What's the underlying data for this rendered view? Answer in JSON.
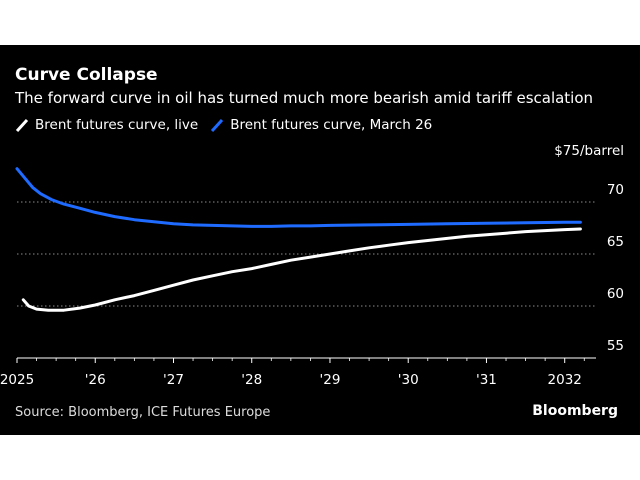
{
  "header": {
    "title": "Curve Collapse",
    "subtitle": "The forward curve in oil has turned much more bearish amid tariff escalation"
  },
  "legend": [
    {
      "label": "Brent futures curve, live",
      "color": "#ffffff"
    },
    {
      "label": "Brent futures curve, March 26",
      "color": "#1f6bff"
    }
  ],
  "footer": {
    "source": "Source: Bloomberg, ICE Futures Europe",
    "brand": "Bloomberg"
  },
  "chart_data": {
    "type": "line",
    "title": "Curve Collapse",
    "xlabel": "",
    "ylabel": "$75/barrel",
    "xlim": [
      2025.0,
      2032.4
    ],
    "ylim": [
      55,
      75
    ],
    "y_ticks": [
      {
        "value": 75,
        "label": "$75/barrel"
      },
      {
        "value": 70,
        "label": "70"
      },
      {
        "value": 65,
        "label": "65"
      },
      {
        "value": 60,
        "label": "60"
      },
      {
        "value": 55,
        "label": "55"
      }
    ],
    "x_ticks": [
      {
        "value": 2025.0,
        "label": "2025"
      },
      {
        "value": 2026.0,
        "label": "'26"
      },
      {
        "value": 2027.0,
        "label": "'27"
      },
      {
        "value": 2028.0,
        "label": "'28"
      },
      {
        "value": 2029.0,
        "label": "'29"
      },
      {
        "value": 2030.0,
        "label": "'30"
      },
      {
        "value": 2031.0,
        "label": "'31"
      },
      {
        "value": 2032.0,
        "label": "2032"
      }
    ],
    "grid": true,
    "series": [
      {
        "name": "Brent futures curve, live",
        "color": "#ffffff",
        "points": [
          [
            2025.08,
            60.6
          ],
          [
            2025.15,
            60.0
          ],
          [
            2025.25,
            59.7
          ],
          [
            2025.4,
            59.6
          ],
          [
            2025.6,
            59.6
          ],
          [
            2025.8,
            59.8
          ],
          [
            2026.0,
            60.1
          ],
          [
            2026.25,
            60.6
          ],
          [
            2026.5,
            61.0
          ],
          [
            2026.75,
            61.5
          ],
          [
            2027.0,
            62.0
          ],
          [
            2027.25,
            62.5
          ],
          [
            2027.5,
            62.9
          ],
          [
            2027.75,
            63.3
          ],
          [
            2028.0,
            63.6
          ],
          [
            2028.25,
            64.0
          ],
          [
            2028.5,
            64.4
          ],
          [
            2028.75,
            64.7
          ],
          [
            2029.0,
            65.0
          ],
          [
            2029.25,
            65.3
          ],
          [
            2029.5,
            65.6
          ],
          [
            2029.75,
            65.85
          ],
          [
            2030.0,
            66.1
          ],
          [
            2030.25,
            66.3
          ],
          [
            2030.5,
            66.5
          ],
          [
            2030.75,
            66.7
          ],
          [
            2031.0,
            66.85
          ],
          [
            2031.25,
            67.0
          ],
          [
            2031.5,
            67.15
          ],
          [
            2031.75,
            67.25
          ],
          [
            2032.0,
            67.35
          ],
          [
            2032.2,
            67.4
          ]
        ]
      },
      {
        "name": "Brent futures curve, March 26",
        "color": "#1f6bff",
        "points": [
          [
            2025.0,
            73.2
          ],
          [
            2025.1,
            72.3
          ],
          [
            2025.2,
            71.4
          ],
          [
            2025.3,
            70.8
          ],
          [
            2025.45,
            70.2
          ],
          [
            2025.6,
            69.8
          ],
          [
            2025.8,
            69.4
          ],
          [
            2026.0,
            69.0
          ],
          [
            2026.25,
            68.6
          ],
          [
            2026.5,
            68.3
          ],
          [
            2026.75,
            68.1
          ],
          [
            2027.0,
            67.9
          ],
          [
            2027.25,
            67.8
          ],
          [
            2027.5,
            67.75
          ],
          [
            2027.75,
            67.7
          ],
          [
            2028.0,
            67.65
          ],
          [
            2028.25,
            67.65
          ],
          [
            2028.5,
            67.7
          ],
          [
            2028.75,
            67.7
          ],
          [
            2029.0,
            67.75
          ],
          [
            2029.5,
            67.8
          ],
          [
            2030.0,
            67.85
          ],
          [
            2030.5,
            67.9
          ],
          [
            2031.0,
            67.95
          ],
          [
            2031.5,
            68.0
          ],
          [
            2032.0,
            68.05
          ],
          [
            2032.2,
            68.05
          ]
        ]
      }
    ]
  }
}
